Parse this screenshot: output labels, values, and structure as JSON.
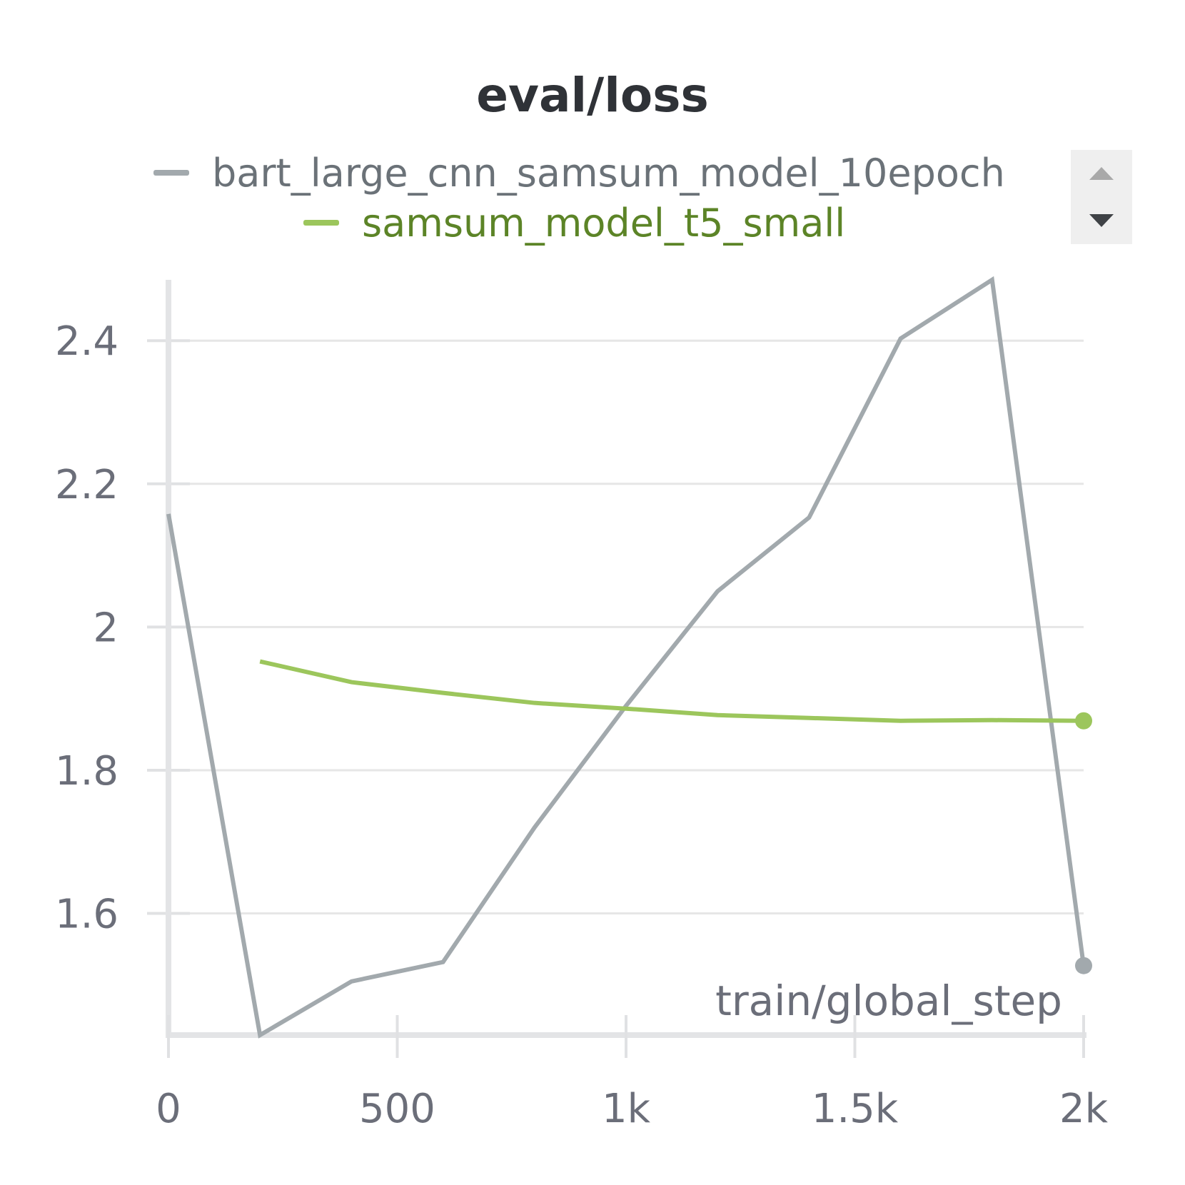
{
  "chart_data": {
    "type": "line",
    "title": "eval/loss",
    "xlabel": "train/global_step",
    "ylabel": "",
    "xlim": [
      0,
      2000
    ],
    "ylim": [
      1.43,
      2.485
    ],
    "x_ticks": [
      0,
      500,
      1000,
      1500,
      2000
    ],
    "x_tick_labels": [
      "0",
      "500",
      "1k",
      "1.5k",
      "2k"
    ],
    "y_ticks": [
      1.6,
      1.8,
      2.0,
      2.2,
      2.4
    ],
    "y_tick_labels": [
      "1.6",
      "1.8",
      "2",
      "2.2",
      "2.4"
    ],
    "grid": true,
    "legend_position": "top",
    "series": [
      {
        "name": "bart_large_cnn_samsum_model_10epoch",
        "color": "#a2a9ad",
        "x": [
          0,
          200,
          400,
          600,
          800,
          1000,
          1200,
          1400,
          1600,
          1800,
          2000
        ],
        "y": [
          2.158,
          1.43,
          1.505,
          1.532,
          1.72,
          1.89,
          2.05,
          2.153,
          2.403,
          2.485,
          1.527
        ]
      },
      {
        "name": "samsum_model_t5_small",
        "color": "#9cc65c",
        "x": [
          200,
          400,
          600,
          800,
          1000,
          1200,
          1400,
          1600,
          1800,
          2000
        ],
        "y": [
          1.952,
          1.923,
          1.908,
          1.894,
          1.886,
          1.877,
          1.873,
          1.869,
          1.87,
          1.869
        ]
      }
    ]
  },
  "legend": {
    "label_colors": [
      "#6b7278",
      "#5c8427"
    ]
  },
  "icons": {
    "pager_up": "triangle-up-icon",
    "pager_down": "triangle-down-icon"
  }
}
